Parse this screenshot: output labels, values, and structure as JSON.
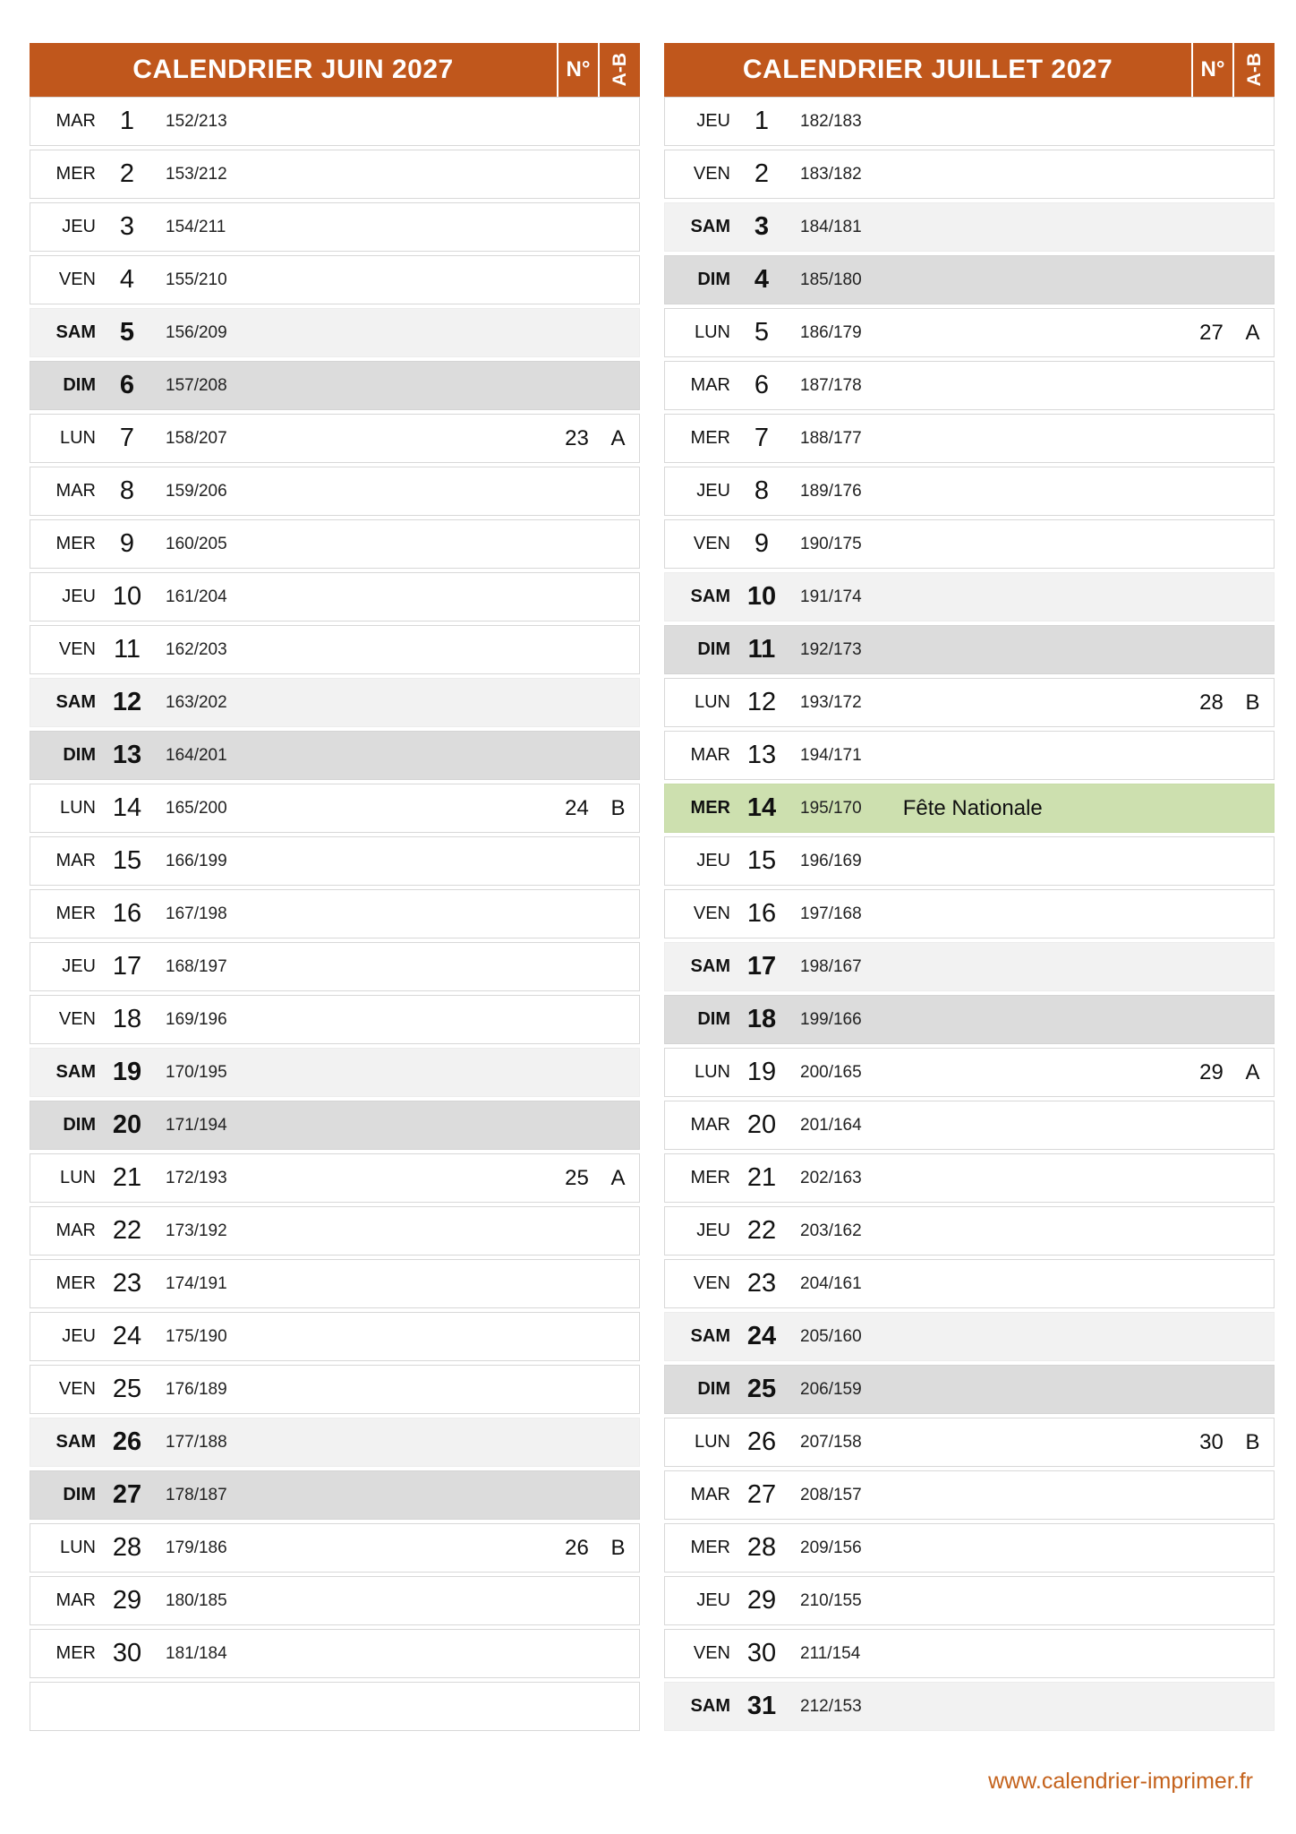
{
  "colors": {
    "header_bg": "#c0571c",
    "saturday_bg": "#f2f2f2",
    "sunday_bg": "#dcdcdc",
    "holiday_bg": "#cde0af",
    "footer_link": "#c4621c"
  },
  "footer": {
    "url_label": "www.calendrier-imprimer.fr"
  },
  "months": [
    {
      "title": "CALENDRIER JUIN 2027",
      "week_col_header": "N°",
      "ab_col_header": "A-B",
      "trailing_empty_row": true,
      "days": [
        {
          "dow": "MAR",
          "num": "1",
          "ord": "152/213",
          "week": "",
          "ab": "",
          "type": "weekday",
          "holiday": ""
        },
        {
          "dow": "MER",
          "num": "2",
          "ord": "153/212",
          "week": "",
          "ab": "",
          "type": "weekday",
          "holiday": ""
        },
        {
          "dow": "JEU",
          "num": "3",
          "ord": "154/211",
          "week": "",
          "ab": "",
          "type": "weekday",
          "holiday": ""
        },
        {
          "dow": "VEN",
          "num": "4",
          "ord": "155/210",
          "week": "",
          "ab": "",
          "type": "weekday",
          "holiday": ""
        },
        {
          "dow": "SAM",
          "num": "5",
          "ord": "156/209",
          "week": "",
          "ab": "",
          "type": "saturday",
          "holiday": ""
        },
        {
          "dow": "DIM",
          "num": "6",
          "ord": "157/208",
          "week": "",
          "ab": "",
          "type": "sunday",
          "holiday": ""
        },
        {
          "dow": "LUN",
          "num": "7",
          "ord": "158/207",
          "week": "23",
          "ab": "A",
          "type": "weekday",
          "holiday": ""
        },
        {
          "dow": "MAR",
          "num": "8",
          "ord": "159/206",
          "week": "",
          "ab": "",
          "type": "weekday",
          "holiday": ""
        },
        {
          "dow": "MER",
          "num": "9",
          "ord": "160/205",
          "week": "",
          "ab": "",
          "type": "weekday",
          "holiday": ""
        },
        {
          "dow": "JEU",
          "num": "10",
          "ord": "161/204",
          "week": "",
          "ab": "",
          "type": "weekday",
          "holiday": ""
        },
        {
          "dow": "VEN",
          "num": "11",
          "ord": "162/203",
          "week": "",
          "ab": "",
          "type": "weekday",
          "holiday": ""
        },
        {
          "dow": "SAM",
          "num": "12",
          "ord": "163/202",
          "week": "",
          "ab": "",
          "type": "saturday",
          "holiday": ""
        },
        {
          "dow": "DIM",
          "num": "13",
          "ord": "164/201",
          "week": "",
          "ab": "",
          "type": "sunday",
          "holiday": ""
        },
        {
          "dow": "LUN",
          "num": "14",
          "ord": "165/200",
          "week": "24",
          "ab": "B",
          "type": "weekday",
          "holiday": ""
        },
        {
          "dow": "MAR",
          "num": "15",
          "ord": "166/199",
          "week": "",
          "ab": "",
          "type": "weekday",
          "holiday": ""
        },
        {
          "dow": "MER",
          "num": "16",
          "ord": "167/198",
          "week": "",
          "ab": "",
          "type": "weekday",
          "holiday": ""
        },
        {
          "dow": "JEU",
          "num": "17",
          "ord": "168/197",
          "week": "",
          "ab": "",
          "type": "weekday",
          "holiday": ""
        },
        {
          "dow": "VEN",
          "num": "18",
          "ord": "169/196",
          "week": "",
          "ab": "",
          "type": "weekday",
          "holiday": ""
        },
        {
          "dow": "SAM",
          "num": "19",
          "ord": "170/195",
          "week": "",
          "ab": "",
          "type": "saturday",
          "holiday": ""
        },
        {
          "dow": "DIM",
          "num": "20",
          "ord": "171/194",
          "week": "",
          "ab": "",
          "type": "sunday",
          "holiday": ""
        },
        {
          "dow": "LUN",
          "num": "21",
          "ord": "172/193",
          "week": "25",
          "ab": "A",
          "type": "weekday",
          "holiday": ""
        },
        {
          "dow": "MAR",
          "num": "22",
          "ord": "173/192",
          "week": "",
          "ab": "",
          "type": "weekday",
          "holiday": ""
        },
        {
          "dow": "MER",
          "num": "23",
          "ord": "174/191",
          "week": "",
          "ab": "",
          "type": "weekday",
          "holiday": ""
        },
        {
          "dow": "JEU",
          "num": "24",
          "ord": "175/190",
          "week": "",
          "ab": "",
          "type": "weekday",
          "holiday": ""
        },
        {
          "dow": "VEN",
          "num": "25",
          "ord": "176/189",
          "week": "",
          "ab": "",
          "type": "weekday",
          "holiday": ""
        },
        {
          "dow": "SAM",
          "num": "26",
          "ord": "177/188",
          "week": "",
          "ab": "",
          "type": "saturday",
          "holiday": ""
        },
        {
          "dow": "DIM",
          "num": "27",
          "ord": "178/187",
          "week": "",
          "ab": "",
          "type": "sunday",
          "holiday": ""
        },
        {
          "dow": "LUN",
          "num": "28",
          "ord": "179/186",
          "week": "26",
          "ab": "B",
          "type": "weekday",
          "holiday": ""
        },
        {
          "dow": "MAR",
          "num": "29",
          "ord": "180/185",
          "week": "",
          "ab": "",
          "type": "weekday",
          "holiday": ""
        },
        {
          "dow": "MER",
          "num": "30",
          "ord": "181/184",
          "week": "",
          "ab": "",
          "type": "weekday",
          "holiday": ""
        }
      ]
    },
    {
      "title": "CALENDRIER JUILLET 2027",
      "week_col_header": "N°",
      "ab_col_header": "A-B",
      "trailing_empty_row": false,
      "days": [
        {
          "dow": "JEU",
          "num": "1",
          "ord": "182/183",
          "week": "",
          "ab": "",
          "type": "weekday",
          "holiday": ""
        },
        {
          "dow": "VEN",
          "num": "2",
          "ord": "183/182",
          "week": "",
          "ab": "",
          "type": "weekday",
          "holiday": ""
        },
        {
          "dow": "SAM",
          "num": "3",
          "ord": "184/181",
          "week": "",
          "ab": "",
          "type": "saturday",
          "holiday": ""
        },
        {
          "dow": "DIM",
          "num": "4",
          "ord": "185/180",
          "week": "",
          "ab": "",
          "type": "sunday",
          "holiday": ""
        },
        {
          "dow": "LUN",
          "num": "5",
          "ord": "186/179",
          "week": "27",
          "ab": "A",
          "type": "weekday",
          "holiday": ""
        },
        {
          "dow": "MAR",
          "num": "6",
          "ord": "187/178",
          "week": "",
          "ab": "",
          "type": "weekday",
          "holiday": ""
        },
        {
          "dow": "MER",
          "num": "7",
          "ord": "188/177",
          "week": "",
          "ab": "",
          "type": "weekday",
          "holiday": ""
        },
        {
          "dow": "JEU",
          "num": "8",
          "ord": "189/176",
          "week": "",
          "ab": "",
          "type": "weekday",
          "holiday": ""
        },
        {
          "dow": "VEN",
          "num": "9",
          "ord": "190/175",
          "week": "",
          "ab": "",
          "type": "weekday",
          "holiday": ""
        },
        {
          "dow": "SAM",
          "num": "10",
          "ord": "191/174",
          "week": "",
          "ab": "",
          "type": "saturday",
          "holiday": ""
        },
        {
          "dow": "DIM",
          "num": "11",
          "ord": "192/173",
          "week": "",
          "ab": "",
          "type": "sunday",
          "holiday": ""
        },
        {
          "dow": "LUN",
          "num": "12",
          "ord": "193/172",
          "week": "28",
          "ab": "B",
          "type": "weekday",
          "holiday": ""
        },
        {
          "dow": "MAR",
          "num": "13",
          "ord": "194/171",
          "week": "",
          "ab": "",
          "type": "weekday",
          "holiday": ""
        },
        {
          "dow": "MER",
          "num": "14",
          "ord": "195/170",
          "week": "",
          "ab": "",
          "type": "holiday",
          "holiday": "Fête Nationale"
        },
        {
          "dow": "JEU",
          "num": "15",
          "ord": "196/169",
          "week": "",
          "ab": "",
          "type": "weekday",
          "holiday": ""
        },
        {
          "dow": "VEN",
          "num": "16",
          "ord": "197/168",
          "week": "",
          "ab": "",
          "type": "weekday",
          "holiday": ""
        },
        {
          "dow": "SAM",
          "num": "17",
          "ord": "198/167",
          "week": "",
          "ab": "",
          "type": "saturday",
          "holiday": ""
        },
        {
          "dow": "DIM",
          "num": "18",
          "ord": "199/166",
          "week": "",
          "ab": "",
          "type": "sunday",
          "holiday": ""
        },
        {
          "dow": "LUN",
          "num": "19",
          "ord": "200/165",
          "week": "29",
          "ab": "A",
          "type": "weekday",
          "holiday": ""
        },
        {
          "dow": "MAR",
          "num": "20",
          "ord": "201/164",
          "week": "",
          "ab": "",
          "type": "weekday",
          "holiday": ""
        },
        {
          "dow": "MER",
          "num": "21",
          "ord": "202/163",
          "week": "",
          "ab": "",
          "type": "weekday",
          "holiday": ""
        },
        {
          "dow": "JEU",
          "num": "22",
          "ord": "203/162",
          "week": "",
          "ab": "",
          "type": "weekday",
          "holiday": ""
        },
        {
          "dow": "VEN",
          "num": "23",
          "ord": "204/161",
          "week": "",
          "ab": "",
          "type": "weekday",
          "holiday": ""
        },
        {
          "dow": "SAM",
          "num": "24",
          "ord": "205/160",
          "week": "",
          "ab": "",
          "type": "saturday",
          "holiday": ""
        },
        {
          "dow": "DIM",
          "num": "25",
          "ord": "206/159",
          "week": "",
          "ab": "",
          "type": "sunday",
          "holiday": ""
        },
        {
          "dow": "LUN",
          "num": "26",
          "ord": "207/158",
          "week": "30",
          "ab": "B",
          "type": "weekday",
          "holiday": ""
        },
        {
          "dow": "MAR",
          "num": "27",
          "ord": "208/157",
          "week": "",
          "ab": "",
          "type": "weekday",
          "holiday": ""
        },
        {
          "dow": "MER",
          "num": "28",
          "ord": "209/156",
          "week": "",
          "ab": "",
          "type": "weekday",
          "holiday": ""
        },
        {
          "dow": "JEU",
          "num": "29",
          "ord": "210/155",
          "week": "",
          "ab": "",
          "type": "weekday",
          "holiday": ""
        },
        {
          "dow": "VEN",
          "num": "30",
          "ord": "211/154",
          "week": "",
          "ab": "",
          "type": "weekday",
          "holiday": ""
        },
        {
          "dow": "SAM",
          "num": "31",
          "ord": "212/153",
          "week": "",
          "ab": "",
          "type": "saturday",
          "holiday": ""
        }
      ]
    }
  ]
}
